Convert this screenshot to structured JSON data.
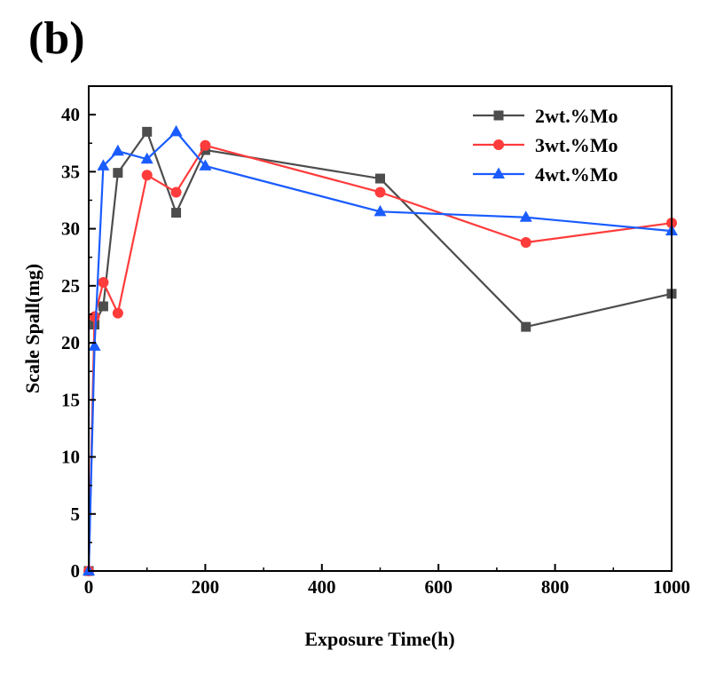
{
  "panel_label": "(b)",
  "chart_data": {
    "type": "line",
    "title": "",
    "xlabel": "Exposure Time(h)",
    "ylabel": "Scale Spall(mg)",
    "xlim": [
      0,
      1000
    ],
    "ylim": [
      0,
      42.5
    ],
    "xticks": [
      0,
      200,
      400,
      600,
      800,
      1000
    ],
    "yticks": [
      0,
      5,
      10,
      15,
      20,
      25,
      30,
      35,
      40
    ],
    "grid": false,
    "legend_position": "top-right",
    "series": [
      {
        "name": "2wt.%Mo",
        "color": "#4d4d4d",
        "marker": "square",
        "points": [
          [
            0,
            0
          ],
          [
            10,
            21.6
          ],
          [
            25,
            23.2
          ],
          [
            50,
            34.9
          ],
          [
            100,
            38.5
          ],
          [
            150,
            31.4
          ],
          [
            200,
            36.9
          ],
          [
            500,
            34.4
          ],
          [
            750,
            21.4
          ],
          [
            1000,
            24.3
          ]
        ]
      },
      {
        "name": "3wt.%Mo",
        "color": "#ff3b3b",
        "marker": "circle",
        "points": [
          [
            0,
            0
          ],
          [
            10,
            22.3
          ],
          [
            25,
            25.3
          ],
          [
            50,
            22.6
          ],
          [
            100,
            34.7
          ],
          [
            150,
            33.2
          ],
          [
            200,
            37.3
          ],
          [
            500,
            33.2
          ],
          [
            750,
            28.8
          ],
          [
            1000,
            30.5
          ]
        ]
      },
      {
        "name": "4wt.%Mo",
        "color": "#1a5cff",
        "marker": "triangle",
        "points": [
          [
            0,
            0
          ],
          [
            10,
            19.7
          ],
          [
            25,
            35.5
          ],
          [
            50,
            36.8
          ],
          [
            100,
            36.1
          ],
          [
            150,
            38.5
          ],
          [
            200,
            35.5
          ],
          [
            500,
            31.5
          ],
          [
            750,
            31.0
          ],
          [
            1000,
            29.8
          ]
        ]
      }
    ]
  }
}
